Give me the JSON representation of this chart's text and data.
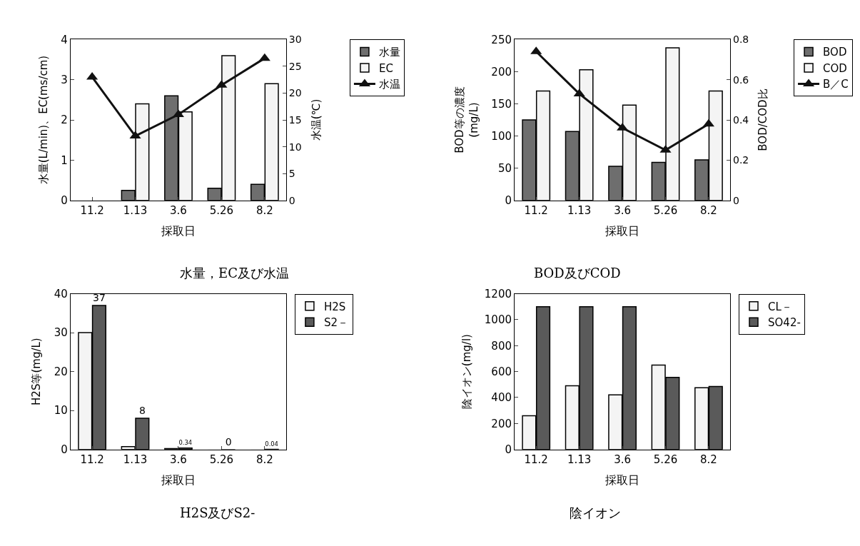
{
  "chart_data": [
    {
      "type": "bar",
      "title": "水量，EC及び水温",
      "xlabel": "採取日",
      "ylabel": "水量(L/min)、EC(ms/cm)",
      "y2label": "水温(℃)",
      "categories": [
        "11.2",
        "1.13",
        "3.6",
        "5.26",
        "8.2"
      ],
      "ylim": [
        0,
        4
      ],
      "yticks": [
        0,
        1,
        2,
        3,
        4
      ],
      "y2lim": [
        0,
        30
      ],
      "y2ticks": [
        0,
        5,
        10,
        15,
        20,
        25,
        30
      ],
      "legend": "top right",
      "marker": "triangle",
      "line_style": "solid",
      "series": [
        {
          "name": "水量",
          "color": "#6e6e6e",
          "values": [
            null,
            0.25,
            2.6,
            0.3,
            0.4
          ]
        },
        {
          "name": "EC",
          "color": "#f4f4f4",
          "values": [
            null,
            2.4,
            2.2,
            3.6,
            2.9
          ]
        },
        {
          "name": "水温",
          "type": "line",
          "axis": "y2",
          "color": "#111111",
          "values": [
            23,
            12,
            16,
            21.5,
            26.5
          ]
        }
      ]
    },
    {
      "type": "bar",
      "title": "BOD及びCOD",
      "xlabel": "採取日",
      "ylabel": "BOD等の濃度\n(mg/L)",
      "y2label": "BOD/COD比",
      "categories": [
        "11.2",
        "1.13",
        "3.6",
        "5.26",
        "8.2"
      ],
      "ylim": [
        0,
        250
      ],
      "yticks": [
        0,
        50,
        100,
        150,
        200,
        250
      ],
      "y2lim": [
        0,
        0.8
      ],
      "y2ticks": [
        0,
        0.2,
        0.4,
        0.6,
        0.8
      ],
      "legend": "top right",
      "marker": "triangle",
      "line_style": "solid",
      "series": [
        {
          "name": "BOD",
          "color": "#6e6e6e",
          "values": [
            125,
            107,
            53,
            59,
            63
          ]
        },
        {
          "name": "COD",
          "color": "#f4f4f4",
          "values": [
            170,
            203,
            148,
            237,
            170
          ]
        },
        {
          "name": "B／C",
          "type": "line",
          "axis": "y2",
          "color": "#111111",
          "values": [
            0.74,
            0.53,
            0.36,
            0.25,
            0.38
          ]
        }
      ]
    },
    {
      "type": "bar",
      "title": "H2S及びS2-",
      "xlabel": "採取日",
      "ylabel": "H2S等(mg/L)",
      "categories": [
        "11.2",
        "1.13",
        "3.6",
        "5.26",
        "8.2"
      ],
      "ylim": [
        0,
        40
      ],
      "yticks": [
        0,
        10,
        20,
        30,
        40
      ],
      "legend": "top right",
      "series": [
        {
          "name": "H2S",
          "color": "#f4f4f4",
          "values": [
            30,
            0.7,
            0.2,
            0,
            0
          ]
        },
        {
          "name": "S2－",
          "color": "#5a5a5a",
          "values": [
            37,
            8,
            0.34,
            0,
            0.04
          ],
          "value_labels": [
            "37",
            "8",
            "0.34",
            "0",
            "0.04"
          ]
        }
      ]
    },
    {
      "type": "bar",
      "title": "陰イオン",
      "xlabel": "採取日",
      "ylabel": "陰イオン(mg/l)",
      "categories": [
        "11.2",
        "1.13",
        "3.6",
        "5.26",
        "8.2"
      ],
      "ylim": [
        0,
        1200
      ],
      "yticks": [
        0,
        200,
        400,
        600,
        800,
        1000,
        1200
      ],
      "legend": "top right",
      "series": [
        {
          "name": "CL－",
          "color": "#f4f4f4",
          "values": [
            260,
            490,
            420,
            650,
            475
          ]
        },
        {
          "name": "SO42-",
          "color": "#5a5a5a",
          "values": [
            1100,
            1100,
            1100,
            555,
            485
          ]
        }
      ]
    }
  ]
}
